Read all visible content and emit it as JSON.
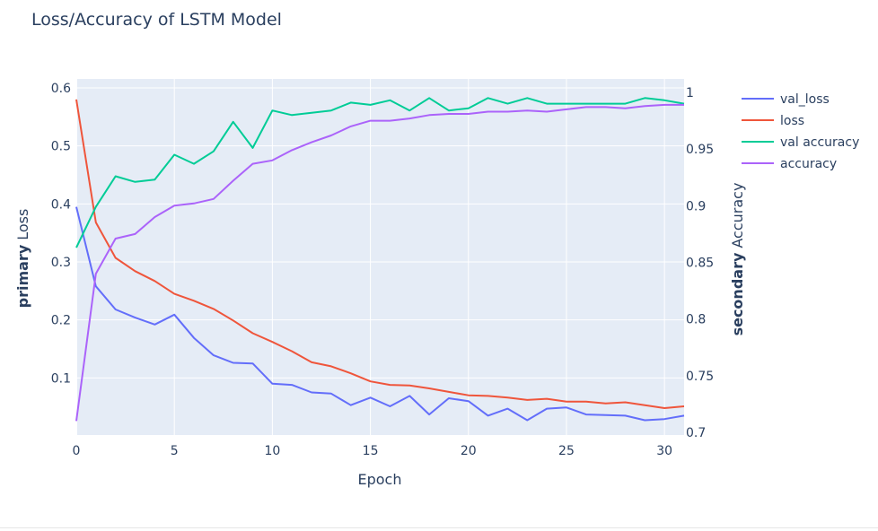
{
  "chart_data": {
    "type": "line",
    "title": "Loss/Accuracy of LSTM Model",
    "xlabel": "Epoch",
    "ylabel_left": {
      "bold": "primary",
      "rest": "Loss"
    },
    "ylabel_right": {
      "bold": "secondary",
      "rest": "Accuracy"
    },
    "x": [
      0,
      1,
      2,
      3,
      4,
      5,
      6,
      7,
      8,
      9,
      10,
      11,
      12,
      13,
      14,
      15,
      16,
      17,
      18,
      19,
      20,
      21,
      22,
      23,
      24,
      25,
      26,
      27,
      28,
      29,
      30,
      31
    ],
    "xlim": [
      0,
      31
    ],
    "ylim_left": [
      0.0,
      0.6
    ],
    "ylim_right": [
      0.7,
      1.0
    ],
    "xticks": [
      0,
      5,
      10,
      15,
      20,
      25,
      30
    ],
    "yticks_left": [
      0.1,
      0.2,
      0.3,
      0.4,
      0.5,
      0.6
    ],
    "yticks_right": [
      0.7,
      0.75,
      0.8,
      0.85,
      0.9,
      0.95,
      1
    ],
    "ytick_labels_left": [
      "0.1",
      "0.2",
      "0.3",
      "0.4",
      "0.5",
      "0.6"
    ],
    "ytick_labels_right": [
      "0.7",
      "0.75",
      "0.8",
      "0.85",
      "0.9",
      "0.95",
      "1"
    ],
    "legend_position": "top-right",
    "grid": true,
    "background": "#e5ecf6",
    "series": [
      {
        "name": "val_loss",
        "axis": "left",
        "color": "#636efa",
        "values": [
          0.395,
          0.258,
          0.218,
          0.204,
          0.192,
          0.209,
          0.169,
          0.139,
          0.126,
          0.125,
          0.09,
          0.088,
          0.075,
          0.073,
          0.053,
          0.066,
          0.051,
          0.069,
          0.037,
          0.065,
          0.06,
          0.035,
          0.047,
          0.027,
          0.047,
          0.049,
          0.037,
          0.036,
          0.035,
          0.027,
          0.029,
          0.035
        ]
      },
      {
        "name": "loss",
        "axis": "left",
        "color": "#ef553b",
        "values": [
          0.58,
          0.368,
          0.307,
          0.284,
          0.267,
          0.245,
          0.233,
          0.219,
          0.199,
          0.177,
          0.162,
          0.146,
          0.127,
          0.12,
          0.108,
          0.094,
          0.088,
          0.087,
          0.082,
          0.076,
          0.07,
          0.069,
          0.066,
          0.062,
          0.064,
          0.059,
          0.059,
          0.056,
          0.058,
          0.053,
          0.048,
          0.051
        ]
      },
      {
        "name": "val accuracy",
        "axis": "right",
        "color": "#00cc96",
        "values": [
          0.863,
          0.899,
          0.926,
          0.921,
          0.923,
          0.945,
          0.937,
          0.948,
          0.974,
          0.951,
          0.984,
          0.98,
          0.982,
          0.984,
          0.991,
          0.989,
          0.993,
          0.984,
          0.995,
          0.984,
          0.986,
          0.995,
          0.99,
          0.995,
          0.99,
          0.99,
          0.99,
          0.99,
          0.99,
          0.995,
          0.993,
          0.99
        ]
      },
      {
        "name": "accuracy",
        "axis": "right",
        "color": "#ab63fa",
        "values": [
          0.71,
          0.84,
          0.871,
          0.875,
          0.89,
          0.9,
          0.902,
          0.906,
          0.922,
          0.937,
          0.94,
          0.949,
          0.956,
          0.962,
          0.97,
          0.975,
          0.975,
          0.977,
          0.98,
          0.981,
          0.981,
          0.983,
          0.983,
          0.984,
          0.983,
          0.985,
          0.987,
          0.987,
          0.986,
          0.988,
          0.989,
          0.989
        ]
      }
    ]
  }
}
